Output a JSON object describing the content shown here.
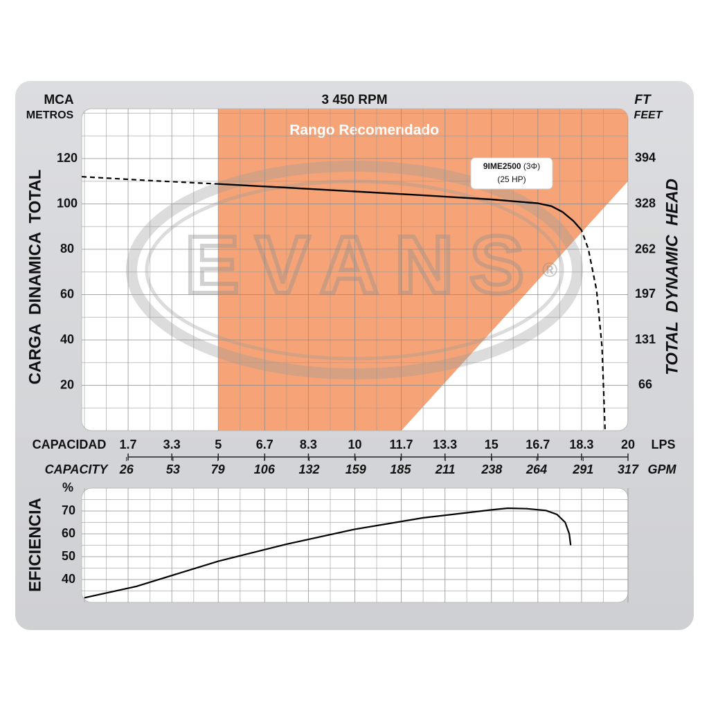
{
  "chart_data": [
    {
      "type": "line",
      "title": "3 450 RPM",
      "y_unit": "MCA",
      "y_unit_sub": "METROS",
      "y2_unit": "FT",
      "y2_unit_sub": "FEET",
      "ylabel": "CARGA  DINAMICA  TOTAL",
      "y2label": "TOTAL  DYNAMIC  HEAD",
      "xlabel": "CAPACIDAD",
      "x_unit": "LPS",
      "x2label": "CAPACITY",
      "x2_unit": "GPM",
      "xlim": [
        0,
        20
      ],
      "xticks": [
        1.7,
        3.3,
        5,
        6.7,
        8.3,
        10,
        11.7,
        13.3,
        15,
        16.7,
        18.3,
        20
      ],
      "x2lim": [
        0,
        317
      ],
      "x2ticks": [
        26,
        53,
        79,
        106,
        132,
        159,
        185,
        211,
        238,
        264,
        291,
        317
      ],
      "ylim": [
        0,
        142
      ],
      "yticks": [
        20,
        40,
        60,
        80,
        100,
        120
      ],
      "y2lim": [
        0,
        466
      ],
      "y2ticks": [
        66,
        131,
        197,
        262,
        328,
        394
      ],
      "grid": true,
      "recommended_region": {
        "label": "Rango Recomendado",
        "color": "#f6a477",
        "x": [
          5,
          20,
          20,
          11.7,
          5
        ],
        "y": [
          142,
          142,
          110,
          0,
          0
        ]
      },
      "operating_range": [
        5,
        18.3
      ],
      "annotation": {
        "model": "9IME2500",
        "phase": "(3Φ)",
        "power": "(25 HP)"
      },
      "watermark": "EVANS",
      "watermark_mark": "®",
      "series": [
        {
          "color": "#000000",
          "x": [
            0,
            2.5,
            5,
            7.5,
            10,
            12.5,
            15,
            16,
            16.7,
            17.2,
            17.6,
            18,
            18.3,
            18.55,
            18.85,
            19.05,
            19.16
          ],
          "values": [
            112,
            110.3,
            108.8,
            107.2,
            105.5,
            103.8,
            102,
            101,
            100.3,
            99,
            96.5,
            92.5,
            88.4,
            80,
            62,
            37,
            0
          ]
        }
      ]
    },
    {
      "type": "line",
      "ylabel": "EFICIENCIA",
      "y_unit": "%",
      "xlim": [
        0,
        20
      ],
      "xticks": [
        1.7,
        3.3,
        5,
        6.7,
        8.3,
        10,
        11.7,
        13.3,
        15,
        16.7,
        18.3,
        20
      ],
      "ylim": [
        30,
        80
      ],
      "yticks": [
        40,
        50,
        60,
        70
      ],
      "grid": true,
      "series": [
        {
          "color": "#000000",
          "x": [
            0.1,
            2,
            5,
            7.5,
            10,
            12.5,
            15,
            15.6,
            16.3,
            17,
            17.4,
            17.7,
            17.85,
            17.9
          ],
          "values": [
            32,
            37,
            48,
            55.5,
            62,
            67,
            70.5,
            71.2,
            71,
            70.2,
            68.5,
            65,
            60,
            55
          ]
        }
      ]
    }
  ]
}
